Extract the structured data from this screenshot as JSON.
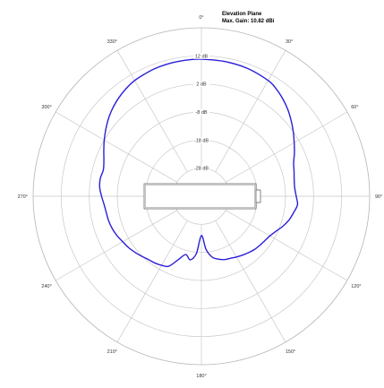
{
  "chart_data": {
    "type": "polar-line",
    "title": "Elevation Plane",
    "subtitle": "Max. Gain: 10.82 dBi",
    "rmin": -38,
    "rmax": 22,
    "ring_levels": [
      -28,
      -18,
      -8,
      2,
      12
    ],
    "ring_labels": [
      "-28 dB",
      "-18 dB",
      "-8 dB",
      "2 dB",
      "12 dB"
    ],
    "angle_ticks": [
      0,
      30,
      60,
      90,
      120,
      150,
      180,
      210,
      240,
      270,
      300,
      330
    ],
    "angle_labels": [
      "0°",
      "30°",
      "60°",
      "90°",
      "120°",
      "150°",
      "180°",
      "210°",
      "240°",
      "270°",
      "300°",
      "330°"
    ],
    "grid": true,
    "series": [
      {
        "angles": [
          0,
          10,
          20,
          30,
          35,
          40,
          45,
          50,
          55,
          60,
          65,
          70,
          75,
          80,
          85,
          90,
          95,
          100,
          105,
          110,
          115,
          120,
          125,
          130,
          135,
          140,
          145,
          150,
          155,
          160,
          165,
          170,
          175,
          180,
          185,
          190,
          195,
          200,
          205,
          210,
          215,
          220,
          225,
          230,
          235,
          240,
          245,
          250,
          255,
          260,
          265,
          270,
          275,
          280,
          285,
          290,
          295,
          300,
          305,
          310,
          315,
          320,
          325,
          330,
          335,
          340,
          345,
          350,
          355
        ],
        "values": [
          10.8,
          10.7,
          10.4,
          9.6,
          8.6,
          7.2,
          5.6,
          3.8,
          2.0,
          0.2,
          -1.4,
          -3.0,
          -3.8,
          -4.4,
          -4.6,
          -4.2,
          -3.6,
          -4.6,
          -5.6,
          -7.0,
          -8.6,
          -9.8,
          -10.4,
          -10.8,
          -11.2,
          -11.8,
          -12.4,
          -13.0,
          -13.6,
          -14.0,
          -14.8,
          -16.0,
          -19.0,
          -24.0,
          -17.5,
          -15.0,
          -16.5,
          -14.0,
          -10.5,
          -9.6,
          -9.0,
          -8.6,
          -7.8,
          -7.0,
          -6.2,
          -5.6,
          -4.8,
          -4.2,
          -3.8,
          -3.6,
          -3.2,
          -2.4,
          -1.6,
          -1.4,
          -1.8,
          -1.0,
          0.4,
          2.0,
          3.6,
          5.2,
          6.6,
          7.8,
          8.8,
          9.6,
          10.0,
          10.4,
          10.6,
          10.7,
          10.8
        ]
      }
    ]
  }
}
